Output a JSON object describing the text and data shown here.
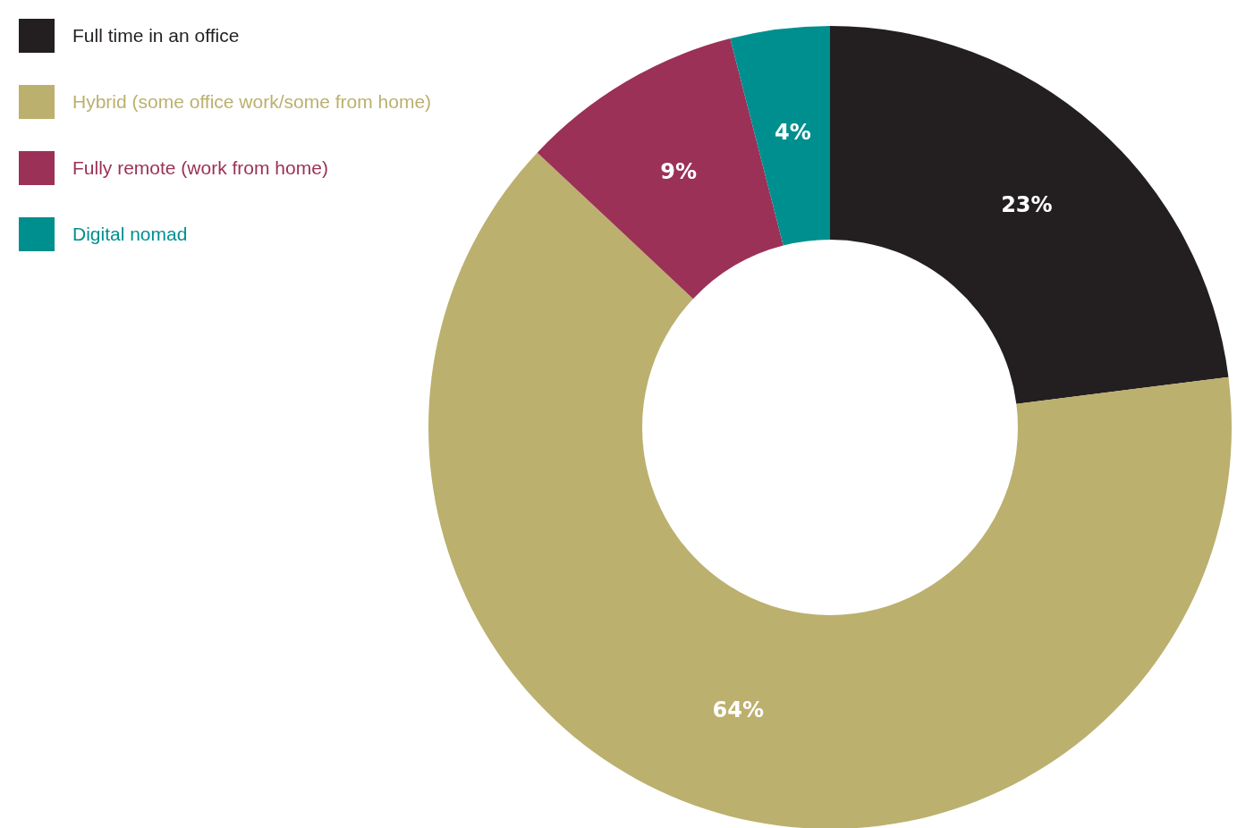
{
  "chart_data": {
    "type": "donut",
    "categories": [
      "Full time in an office",
      "Hybrid (some office work/some from home)",
      "Fully remote (work from home)",
      "Digital nomad"
    ],
    "values": [
      23,
      64,
      9,
      4
    ],
    "colors": [
      "#231f20",
      "#bbb06e",
      "#9b3157",
      "#008f8f"
    ],
    "value_labels": [
      "23%",
      "64%",
      "9%",
      "4%"
    ],
    "legend": "top left"
  }
}
